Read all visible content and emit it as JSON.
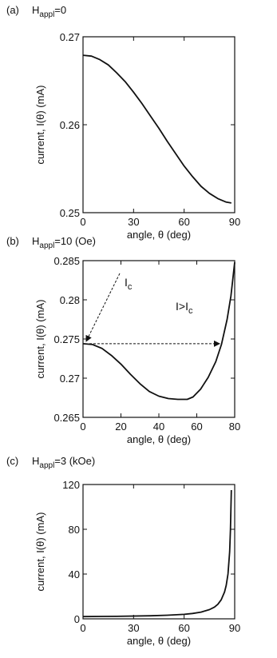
{
  "chart_data": [
    {
      "type": "line",
      "panel_label": "(a)",
      "title_base": "H",
      "title_sub": "appl",
      "title_rest": "=0",
      "xlabel": "angle, θ (deg)",
      "ylabel": "current, I(θ) (mA)",
      "xlim": [
        0,
        90
      ],
      "ylim": [
        0.25,
        0.27
      ],
      "xticks": [
        0,
        30,
        60,
        90
      ],
      "yticks": [
        0.25,
        0.26,
        0.27
      ],
      "series": [
        {
          "x": [
            0,
            5,
            10,
            15,
            20,
            25,
            30,
            35,
            40,
            45,
            50,
            55,
            60,
            65,
            70,
            75,
            80,
            85,
            88
          ],
          "values": [
            0.2679,
            0.2678,
            0.2674,
            0.2668,
            0.2659,
            0.2649,
            0.2637,
            0.2624,
            0.261,
            0.2596,
            0.2581,
            0.2567,
            0.2553,
            0.2541,
            0.253,
            0.2522,
            0.2516,
            0.2512,
            0.2511
          ]
        }
      ]
    },
    {
      "type": "line",
      "panel_label": "(b)",
      "title_base": "H",
      "title_sub": "appl",
      "title_rest": "=10 (Oe)",
      "xlabel": "angle, θ (deg)",
      "ylabel": "current, I(θ) (mA)",
      "xlim": [
        0,
        80
      ],
      "ylim": [
        0.265,
        0.285
      ],
      "xticks": [
        0,
        20,
        40,
        60,
        80
      ],
      "yticks": [
        0.265,
        0.27,
        0.275,
        0.28,
        0.285
      ],
      "ytick_labels": [
        "0.265",
        "0.27",
        "0.275",
        "0.28",
        "0.285"
      ],
      "series": [
        {
          "x": [
            0,
            5,
            10,
            15,
            20,
            25,
            30,
            35,
            40,
            45,
            50,
            55,
            58,
            62,
            66,
            70,
            73,
            76,
            78,
            80
          ],
          "values": [
            0.2744,
            0.2743,
            0.2738,
            0.2729,
            0.2718,
            0.2705,
            0.2693,
            0.2683,
            0.2677,
            0.2674,
            0.2673,
            0.2673,
            0.2676,
            0.2686,
            0.2701,
            0.2721,
            0.2743,
            0.2775,
            0.2805,
            0.2848
          ]
        }
      ],
      "annotations": {
        "ic_base": "I",
        "ic_sub": "c",
        "igt_base": "I>I",
        "igt_sub": "c",
        "arrow_y": 0.2744,
        "arrow_x_end": 72
      }
    },
    {
      "type": "line",
      "panel_label": "(c)",
      "title_base": "H",
      "title_sub": "appl",
      "title_rest": "=3 (kOe)",
      "xlabel": "angle, θ (deg)",
      "ylabel": "current, I(θ) (mA)",
      "xlim": [
        0,
        90
      ],
      "ylim": [
        0,
        120
      ],
      "xticks": [
        0,
        30,
        60,
        90
      ],
      "yticks": [
        0,
        40,
        80,
        120
      ],
      "series": [
        {
          "x": [
            0,
            20,
            40,
            50,
            60,
            65,
            70,
            75,
            78,
            80,
            82,
            84,
            85,
            86,
            87,
            87.5,
            88
          ],
          "values": [
            2.0,
            2.2,
            2.7,
            3.2,
            4.0,
            4.8,
            6.0,
            8.2,
            10.5,
            13,
            17,
            24,
            30,
            40,
            60,
            80,
            115
          ]
        }
      ]
    }
  ]
}
